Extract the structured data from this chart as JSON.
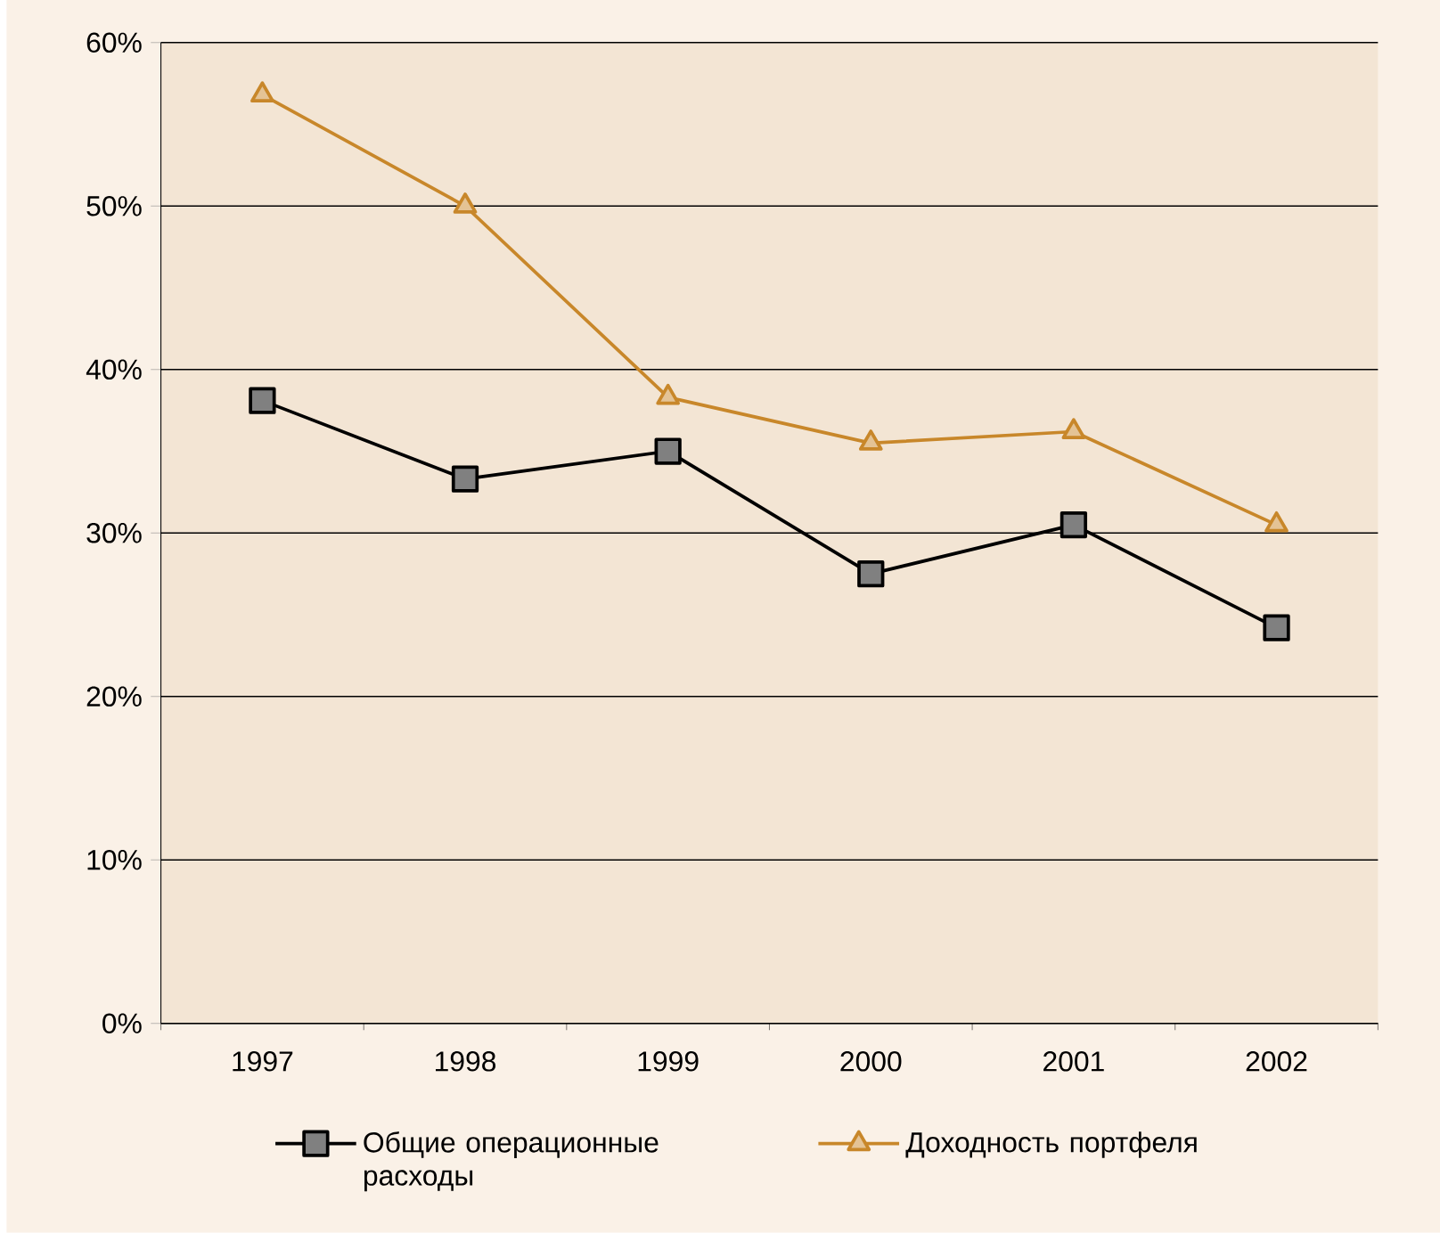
{
  "chart_data": {
    "type": "line",
    "categories": [
      "1997",
      "1998",
      "1999",
      "2000",
      "2001",
      "2002"
    ],
    "series": [
      {
        "name": "Общие операционные расходы",
        "color": "#000000",
        "marker": "square",
        "values": [
          38.1,
          33.3,
          35.0,
          27.5,
          30.5,
          24.2
        ]
      },
      {
        "name": "Доходность портфеля",
        "color": "#c8872a",
        "marker": "triangle",
        "values": [
          56.8,
          50.0,
          38.3,
          35.5,
          36.2,
          30.5
        ]
      }
    ],
    "ylim": [
      0,
      60
    ],
    "yticks": [
      {
        "value": 0,
        "label": "0%"
      },
      {
        "value": 10,
        "label": "10%"
      },
      {
        "value": 20,
        "label": "20%"
      },
      {
        "value": 30,
        "label": "30%"
      },
      {
        "value": 40,
        "label": "40%"
      },
      {
        "value": 50,
        "label": "50%"
      },
      {
        "value": 60,
        "label": "60%"
      }
    ],
    "grid": "y",
    "legend": "bottom"
  }
}
